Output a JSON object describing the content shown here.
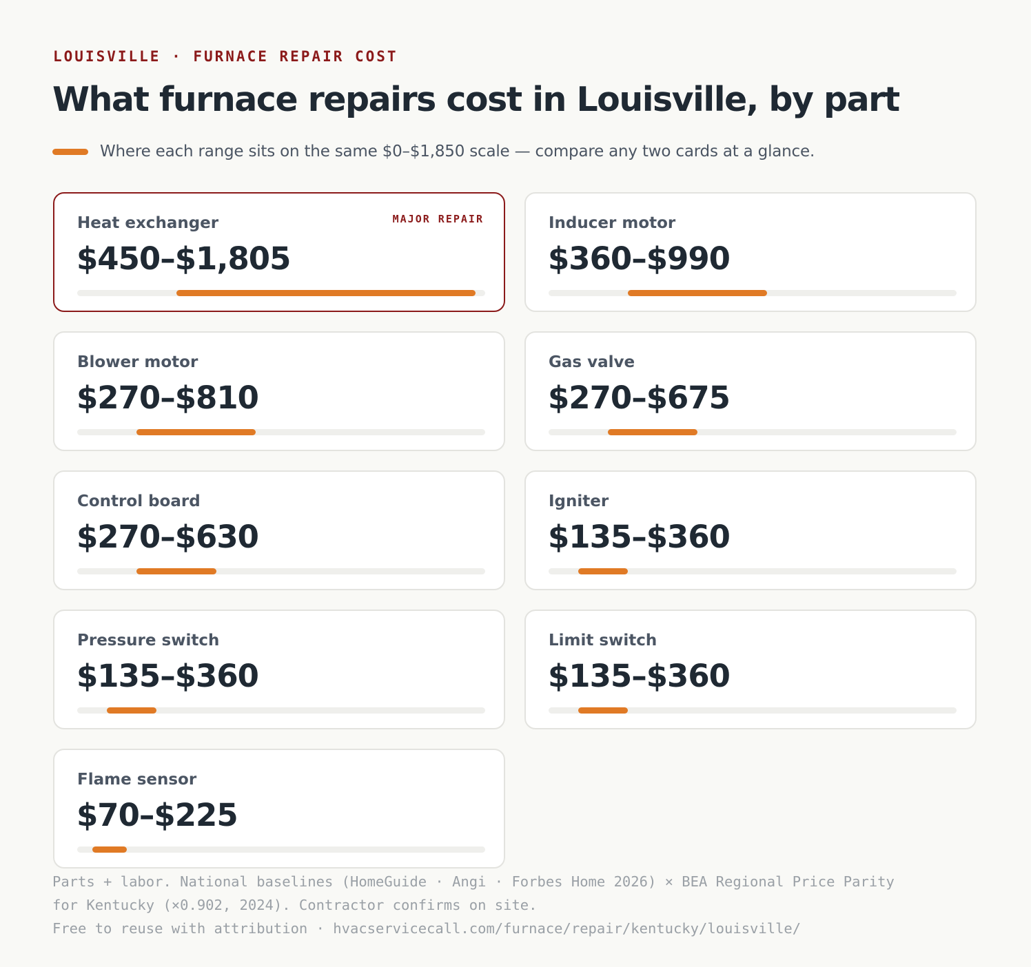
{
  "header": {
    "eyebrow": "LOUISVILLE · FURNACE REPAIR COST",
    "title": "What furnace repairs cost in Louisville, by part",
    "subtitle": "Where each range sits on the same $0–$1,850 scale — compare any two cards at a glance."
  },
  "colors": {
    "accent": "#e07a25",
    "brand": "#8b1a1a",
    "track": "#efefec",
    "background": "#f9f9f6"
  },
  "chart_data": {
    "type": "bar",
    "scale": {
      "min": 0,
      "max": 1850,
      "unit": "USD"
    },
    "items": [
      {
        "label": "Heat exchanger",
        "low": 450,
        "high": 1805,
        "range_text": "$450–$1,805",
        "tag": "MAJOR REPAIR"
      },
      {
        "label": "Inducer motor",
        "low": 360,
        "high": 990,
        "range_text": "$360–$990"
      },
      {
        "label": "Blower motor",
        "low": 270,
        "high": 810,
        "range_text": "$270–$810"
      },
      {
        "label": "Gas valve",
        "low": 270,
        "high": 675,
        "range_text": "$270–$675"
      },
      {
        "label": "Control board",
        "low": 270,
        "high": 630,
        "range_text": "$270–$630"
      },
      {
        "label": "Igniter",
        "low": 135,
        "high": 360,
        "range_text": "$135–$360"
      },
      {
        "label": "Pressure switch",
        "low": 135,
        "high": 360,
        "range_text": "$135–$360"
      },
      {
        "label": "Limit switch",
        "low": 135,
        "high": 360,
        "range_text": "$135–$360"
      },
      {
        "label": "Flame sensor",
        "low": 70,
        "high": 225,
        "range_text": "$70–$225"
      }
    ]
  },
  "footer": {
    "line1": "Parts + labor. National baselines (HomeGuide · Angi · Forbes Home 2026) × BEA Regional Price Parity",
    "line2": "for Kentucky (×0.902, 2024). Contractor confirms on site.",
    "line3": "Free to reuse with attribution · hvacservicecall.com/furnace/repair/kentucky/louisville/"
  }
}
